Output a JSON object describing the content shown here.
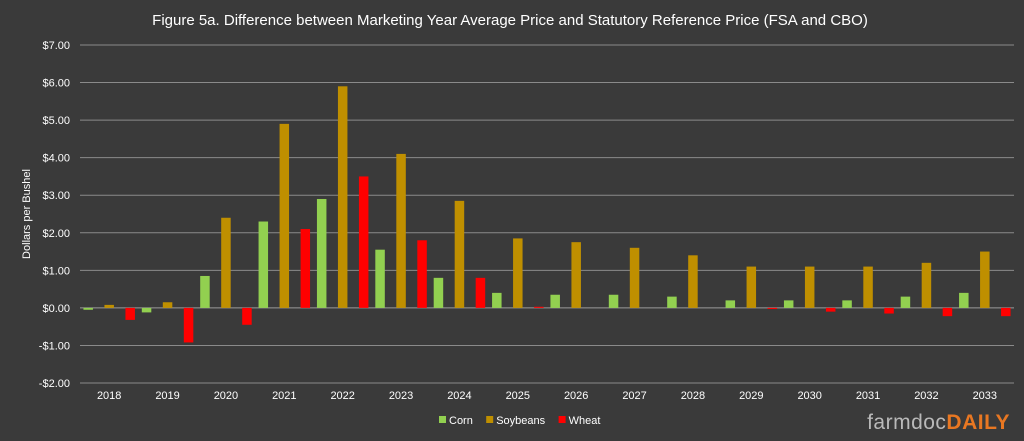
{
  "chart_data": {
    "type": "bar",
    "title": "Figure 5a. Difference between Marketing Year Average Price and Statutory Reference Price (FSA and CBO)",
    "xlabel": "",
    "ylabel": "Dollars per Bushel",
    "ylim": [
      -2,
      7
    ],
    "yticks": [
      -2,
      -1,
      0,
      1,
      2,
      3,
      4,
      5,
      6,
      7
    ],
    "ytick_labels": [
      "-$2.00",
      "-$1.00",
      "$0.00",
      "$1.00",
      "$2.00",
      "$3.00",
      "$4.00",
      "$5.00",
      "$6.00",
      "$7.00"
    ],
    "grid": true,
    "legend_position": "bottom",
    "categories": [
      "2018",
      "2019",
      "2020",
      "2021",
      "2022",
      "2023",
      "2024",
      "2025",
      "2026",
      "2027",
      "2028",
      "2029",
      "2030",
      "2031",
      "2032",
      "2033"
    ],
    "series": [
      {
        "name": "Corn",
        "color": "#92d050",
        "values": [
          -0.05,
          -0.12,
          0.85,
          2.3,
          2.9,
          1.55,
          0.8,
          0.4,
          0.35,
          0.35,
          0.3,
          0.2,
          0.2,
          0.2,
          0.3,
          0.4
        ]
      },
      {
        "name": "Soybeans",
        "color": "#bf8f00",
        "values": [
          0.08,
          0.15,
          2.4,
          4.9,
          5.9,
          4.1,
          2.85,
          1.85,
          1.75,
          1.6,
          1.4,
          1.1,
          1.1,
          1.1,
          1.2,
          1.5
        ]
      },
      {
        "name": "Wheat",
        "color": "#ff0000",
        "values": [
          -0.32,
          -0.92,
          -0.45,
          2.1,
          3.5,
          1.8,
          0.8,
          0.03,
          0.0,
          0.0,
          0.0,
          -0.03,
          -0.1,
          -0.15,
          -0.22,
          -0.22
        ]
      }
    ]
  },
  "brand": {
    "part1": "farmdoc",
    "part2": "DAILY"
  }
}
